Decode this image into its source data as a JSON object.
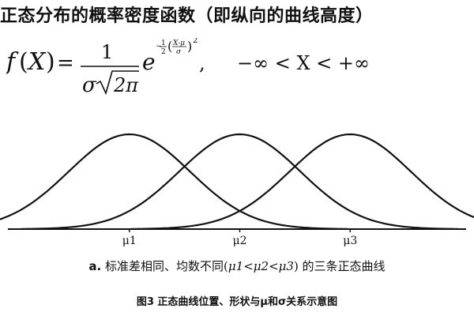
{
  "title": "正态分布的概率密度函数（即纵向的曲线高度）",
  "formula": {
    "lhs_f": "f",
    "lhs_open": "(",
    "lhs_x": "X",
    "lhs_close": ")",
    "equals": "=",
    "numerator": "1",
    "den_sigma": "σ",
    "den_two_pi": "2π",
    "e": "e",
    "exp_half_num": "1",
    "exp_half_den": "2",
    "exp_inner_num": "X-μ",
    "exp_inner_den": "σ",
    "exp_power": "2",
    "comma": ",",
    "range": "−∞ < X < +∞"
  },
  "chart_data": {
    "type": "line",
    "xlabel": "",
    "ylabel": "",
    "series": [
      {
        "mu": 1,
        "sigma": 0.55
      },
      {
        "mu": 2,
        "sigma": 0.55
      },
      {
        "mu": 3,
        "sigma": 0.55
      }
    ],
    "mu_labels": [
      "μ1",
      "μ2",
      "μ3"
    ],
    "xlim": [
      -0.1,
      4.05
    ],
    "grid": false
  },
  "caption": {
    "prefix": "a.",
    "text_before": "标准差相同、均数不同(",
    "mu1": "μ1",
    "lt1": "<",
    "mu2": "μ2",
    "lt2": "<",
    "mu3": "μ3",
    "text_after": ") 的三条正态曲线"
  },
  "figure_title": "图3 正态曲线位置、形状与μ和σ关系示意图",
  "colors": {
    "ink": "#111111",
    "background": "#ffffff"
  }
}
